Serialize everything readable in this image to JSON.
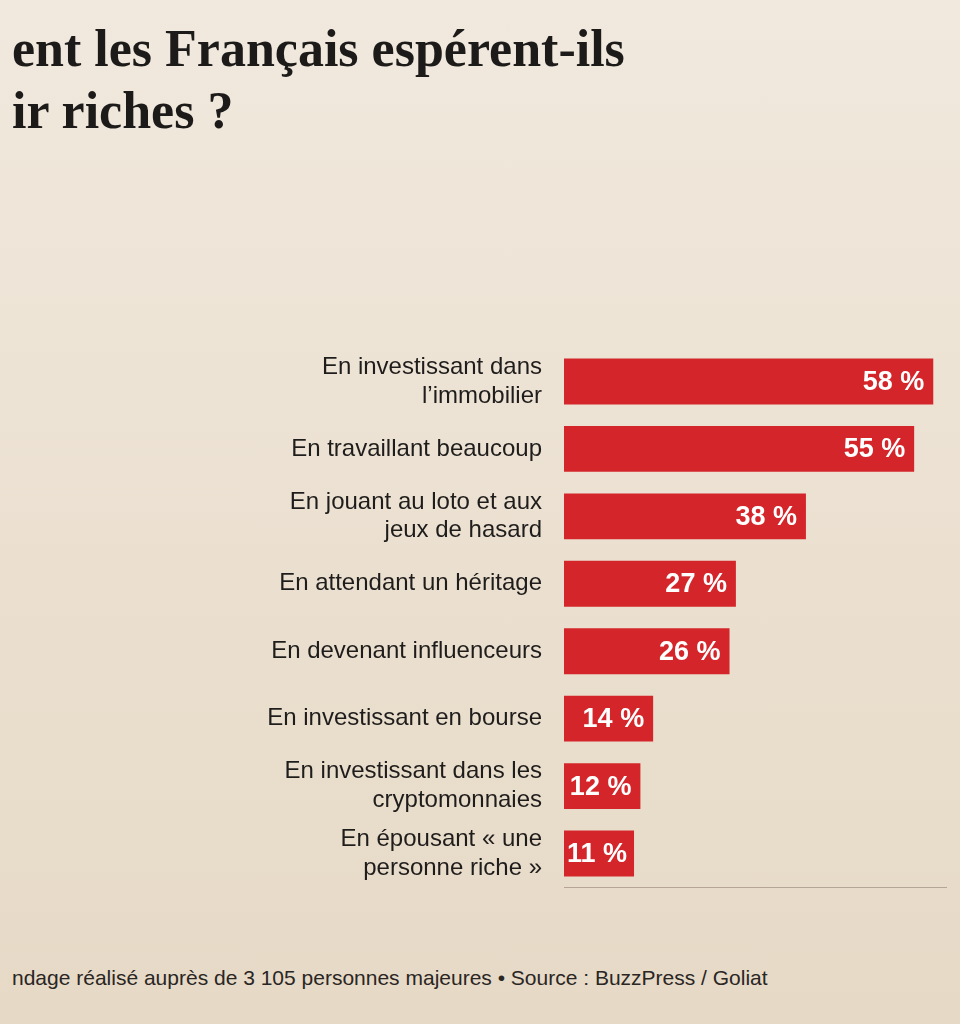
{
  "chart_data": {
    "type": "bar",
    "orientation": "horizontal",
    "title": [
      "ent les Français espérent-ils",
      "ir riches ?"
    ],
    "categories": [
      "En investissant dans l’immobilier",
      "En travaillant beaucoup",
      "En jouant au loto et aux jeux de hasard",
      "En attendant un héritage",
      "En devenant influenceurs",
      "En investissant en bourse",
      "En investissant dans les cryptomonnaies",
      "En épousant « une personne riche »"
    ],
    "values": [
      58,
      55,
      38,
      27,
      26,
      14,
      12,
      11
    ],
    "value_labels": [
      "58 %",
      "55 %",
      "38 %",
      "27 %",
      "26 %",
      "14 %",
      "12 %",
      "11 %"
    ],
    "data_labels": true,
    "color": "#d4262a",
    "xlim": [
      0,
      60
    ],
    "tick_labels": "y",
    "grid": false,
    "footnote": "ndage réalisé auprès de 3 105 personnes majeures • Source : BuzzPress / Goliat"
  }
}
